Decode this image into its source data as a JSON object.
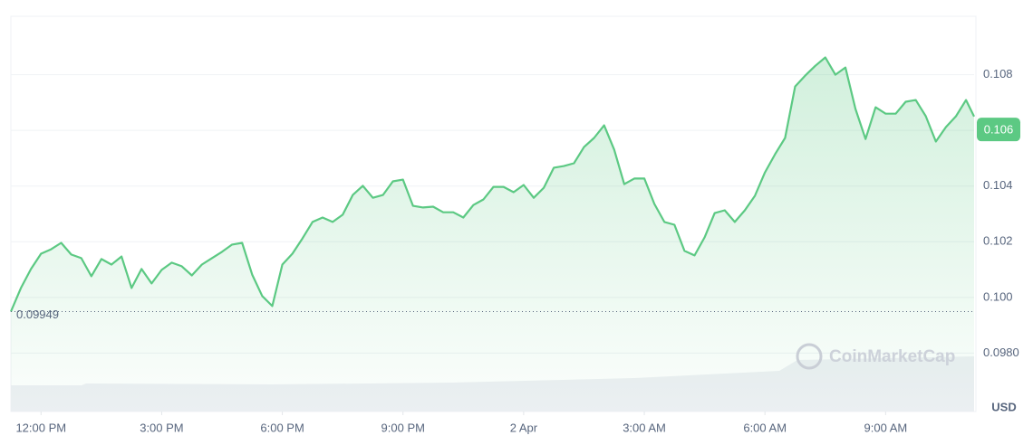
{
  "chart_data": {
    "type": "line",
    "x": [
      -0.75,
      -0.5,
      -0.25,
      0,
      0.25,
      0.5,
      0.75,
      1,
      1.25,
      1.5,
      1.75,
      2,
      2.25,
      2.5,
      2.75,
      3,
      3.25,
      3.5,
      3.75,
      4,
      4.25,
      4.5,
      4.75,
      5,
      5.25,
      5.5,
      5.75,
      6,
      6.25,
      6.5,
      6.75,
      7,
      7.25,
      7.5,
      7.75,
      8,
      8.25,
      8.5,
      8.75,
      9,
      9.25,
      9.5,
      9.75,
      10,
      10.25,
      10.5,
      10.75,
      11,
      11.25,
      11.5,
      11.75,
      12,
      12.25,
      12.5,
      12.75,
      13,
      13.25,
      13.5,
      13.75,
      14,
      14.25,
      14.5,
      14.75,
      15,
      15.25,
      15.5,
      15.75,
      16,
      16.25,
      16.5,
      16.75,
      17,
      17.25,
      17.5,
      17.75,
      18,
      18.25,
      18.5,
      18.75,
      19,
      19.25,
      19.5,
      19.75,
      20,
      20.25,
      20.5,
      20.75,
      21,
      21.25,
      21.5,
      21.75,
      22,
      22.25,
      22.5,
      22.75,
      23,
      23.2
    ],
    "series": [
      {
        "color": "#5cc983",
        "values": [
          0.09949,
          0.10034,
          0.10102,
          0.10157,
          0.10173,
          0.10196,
          0.10154,
          0.10141,
          0.10076,
          0.10138,
          0.10118,
          0.10147,
          0.10034,
          0.10102,
          0.1005,
          0.10099,
          0.10125,
          0.10112,
          0.10079,
          0.10118,
          0.10141,
          0.10164,
          0.1019,
          0.10196,
          0.10082,
          0.10005,
          0.09969,
          0.10118,
          0.10157,
          0.10212,
          0.10271,
          0.10287,
          0.10271,
          0.10297,
          0.10368,
          0.10401,
          0.10358,
          0.10368,
          0.10417,
          0.10423,
          0.10329,
          0.10323,
          0.10326,
          0.10306,
          0.10306,
          0.10287,
          0.10332,
          0.10352,
          0.10397,
          0.10397,
          0.10378,
          0.10404,
          0.10358,
          0.10394,
          0.10466,
          0.10472,
          0.10482,
          0.1054,
          0.10573,
          0.10618,
          0.10531,
          0.10407,
          0.10427,
          0.10427,
          0.10336,
          0.10271,
          0.10261,
          0.10167,
          0.10151,
          0.10216,
          0.10303,
          0.10313,
          0.10271,
          0.10313,
          0.10365,
          0.10449,
          0.10514,
          0.10573,
          0.10758,
          0.10797,
          0.10832,
          0.10862,
          0.108,
          0.10826,
          0.10677,
          0.10569,
          0.10683,
          0.1066,
          0.1066,
          0.10703,
          0.10709,
          0.10651,
          0.1056,
          0.10612,
          0.10651,
          0.10709,
          0.1065
        ]
      }
    ],
    "xlim": [
      -0.75,
      23.2
    ],
    "xticks": [
      {
        "value": 0,
        "label": "12:00 PM"
      },
      {
        "value": 3,
        "label": "3:00 PM"
      },
      {
        "value": 6,
        "label": "6:00 PM"
      },
      {
        "value": 9,
        "label": "9:00 PM"
      },
      {
        "value": 12,
        "label": "2 Apr"
      },
      {
        "value": 15,
        "label": "3:00 AM"
      },
      {
        "value": 18,
        "label": "6:00 AM"
      },
      {
        "value": 21,
        "label": "9:00 AM"
      }
    ],
    "ylim": [
      0.0959,
      0.1101
    ],
    "yticks": [
      {
        "value": 0.098,
        "label": "0.0980"
      },
      {
        "value": 0.1,
        "label": "0.100"
      },
      0.102,
      0.104,
      0.106,
      0.108
    ],
    "grid": true,
    "open_price": 0.09949,
    "current_price": 0.106,
    "y_axis_label": "USD",
    "watermark": "CoinMarketCap"
  }
}
